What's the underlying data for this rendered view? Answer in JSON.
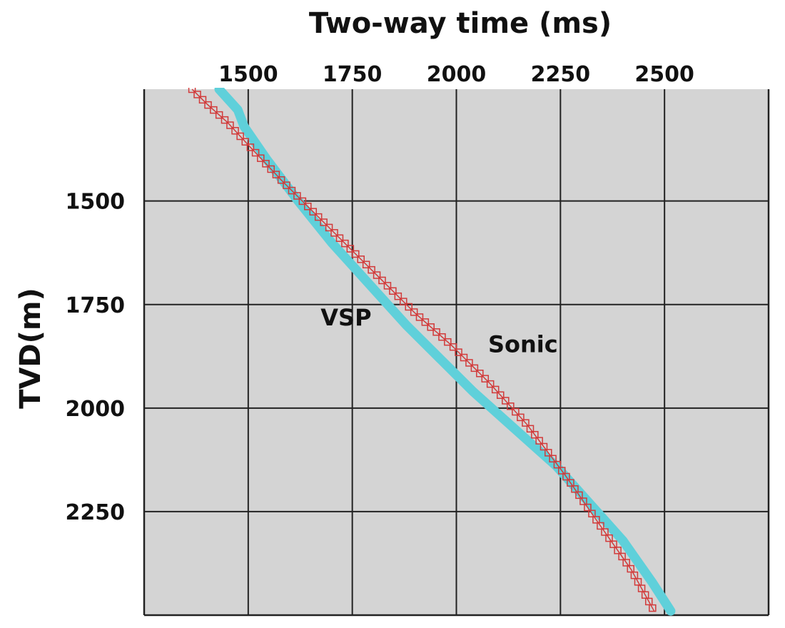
{
  "chart_data": {
    "type": "line",
    "title": "",
    "xlabel": "Two-way time (ms)",
    "ylabel": "TVD(m)",
    "x_axis_position": "top",
    "y_axis_inverted": true,
    "xlim": [
      1250,
      2750
    ],
    "ylim": [
      1230,
      2500
    ],
    "x_ticks": [
      1500,
      1750,
      2000,
      2250,
      2500
    ],
    "y_ticks": [
      1500,
      1750,
      2000,
      2250
    ],
    "grid": true,
    "plot_background": "#d4d4d4",
    "annotations": [
      {
        "text": "VSP",
        "x": 1735,
        "y": 1800
      },
      {
        "text": "Sonic",
        "x": 2160,
        "y": 1865
      }
    ],
    "series": [
      {
        "name": "Sonic",
        "style": "thick-line",
        "color": "#5fd0da",
        "x": [
          1430,
          1475,
          1490,
          1545,
          1620,
          1700,
          1790,
          1880,
          1960,
          2040,
          2140,
          2240,
          2320,
          2400,
          2470,
          2515
        ],
        "y": [
          1230,
          1280,
          1320,
          1400,
          1500,
          1600,
          1700,
          1800,
          1880,
          1960,
          2050,
          2140,
          2230,
          2320,
          2420,
          2490
        ]
      },
      {
        "name": "VSP",
        "style": "square-markers",
        "color": "#d23a3a",
        "x": [
          1365,
          1400,
          1450,
          1505,
          1580,
          1660,
          1740,
          1820,
          1900,
          1990,
          2080,
          2170,
          2260,
          2350,
          2420,
          2475
        ],
        "y": [
          1230,
          1265,
          1310,
          1370,
          1450,
          1530,
          1610,
          1690,
          1770,
          1850,
          1940,
          2040,
          2160,
          2290,
          2390,
          2490
        ]
      }
    ]
  }
}
